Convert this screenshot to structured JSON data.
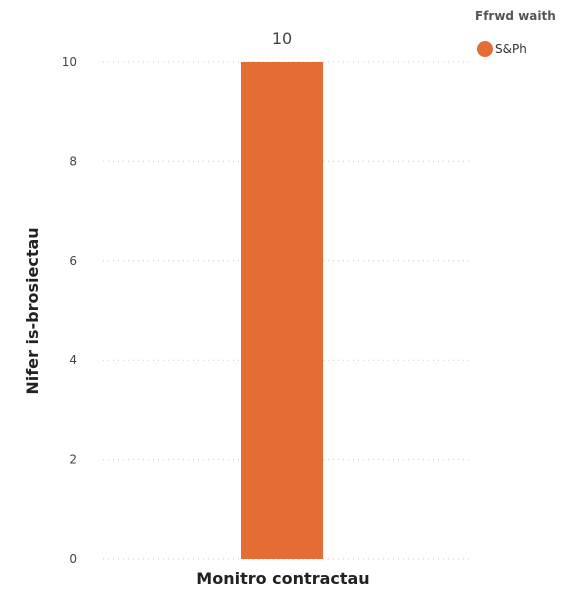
{
  "chart_data": {
    "type": "bar",
    "categories": [
      ""
    ],
    "series": [
      {
        "name": "S&Ph",
        "values": [
          10
        ],
        "color": "#E46C35"
      }
    ],
    "xlabel": "Monitro contractau",
    "ylabel": "Nifer is-brosiectau",
    "ylim": [
      0,
      10
    ],
    "yticks": [
      "0",
      "2",
      "4",
      "6",
      "8",
      "10"
    ],
    "data_labels": [
      "10"
    ],
    "grid": true,
    "legend": {
      "title": "Ffrwd waith",
      "position": "top-right",
      "items": [
        {
          "label": "S&Ph",
          "color": "#E46C35"
        }
      ]
    }
  }
}
